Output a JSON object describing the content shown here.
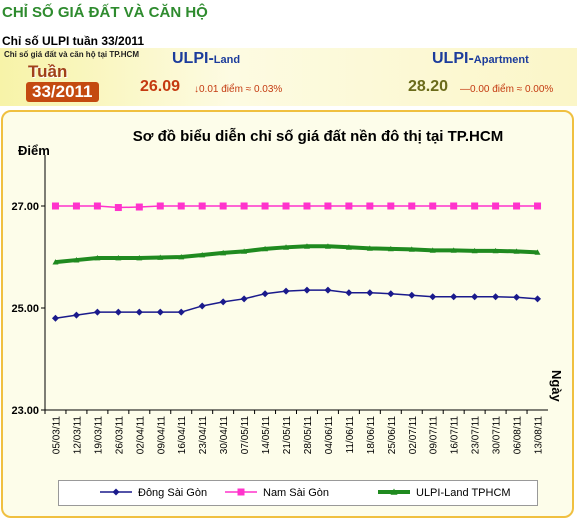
{
  "page_title": "CHỈ SỐ GIÁ ĐẤT VÀ CĂN HỘ",
  "subtitle": "Chỉ số ULPI tuần 33/2011",
  "banner": {
    "caption": "Chỉ số giá đất và căn hộ tại TP.HCM",
    "week_label": "Tuần",
    "week_number": "33/2011",
    "land": {
      "title": "ULPI-",
      "title_suffix": "Land",
      "value": "26.09",
      "change": "↓0.01 điểm ≈ 0.03%"
    },
    "apartment": {
      "title": "ULPI-",
      "title_suffix": "Apartment",
      "value": "28.20",
      "change": "—0.00 điểm ≈ 0.00%"
    },
    "colors": {
      "land_value": "#c43a10",
      "apt_value": "#6b6b1a",
      "land_change": "#c43a10",
      "apt_change": "#c43a10"
    }
  },
  "chart_data": {
    "type": "line",
    "title": "Sơ đồ biểu diễn chỉ số giá đất nền đô thị tại TP.HCM",
    "ylabel": "Điểm",
    "xlabel": "Ngày",
    "ylim": [
      23,
      28
    ],
    "yticks": [
      "23.00",
      "25.00",
      "27.00"
    ],
    "ytick_values": [
      23,
      25,
      27
    ],
    "grid": false,
    "legend_position": "bottom",
    "categories": [
      "05/03/11",
      "12/03/11",
      "19/03/11",
      "26/03/11",
      "02/04/11",
      "09/04/11",
      "16/04/11",
      "23/04/11",
      "30/04/11",
      "07/05/11",
      "14/05/11",
      "21/05/11",
      "28/05/11",
      "04/06/11",
      "11/06/11",
      "18/06/11",
      "25/06/11",
      "02/07/11",
      "09/07/11",
      "16/07/11",
      "23/07/11",
      "30/07/11",
      "06/08/11",
      "13/08/11"
    ],
    "series": [
      {
        "name": "Đông Sài Gòn",
        "color": "#1a1a8c",
        "marker": "diamond",
        "values": [
          24.8,
          24.86,
          24.92,
          24.92,
          24.92,
          24.92,
          24.92,
          25.04,
          25.12,
          25.18,
          25.28,
          25.33,
          25.35,
          25.35,
          25.3,
          25.3,
          25.28,
          25.25,
          25.22,
          25.22,
          25.22,
          25.22,
          25.21,
          25.18
        ]
      },
      {
        "name": "Nam Sài Gòn",
        "color": "#ff33cc",
        "marker": "square",
        "values": [
          27.0,
          27.0,
          27.0,
          26.97,
          26.98,
          27.0,
          27.0,
          27.0,
          27.0,
          27.0,
          27.0,
          27.0,
          27.0,
          27.0,
          27.0,
          27.0,
          27.0,
          27.0,
          27.0,
          27.0,
          27.0,
          27.0,
          27.0,
          27.0
        ]
      },
      {
        "name": "ULPI-Land TPHCM",
        "color": "#1f8a1f",
        "marker": "triangle",
        "values": [
          25.9,
          25.94,
          25.98,
          25.98,
          25.98,
          25.99,
          26.0,
          26.04,
          26.08,
          26.11,
          26.16,
          26.19,
          26.21,
          26.21,
          26.19,
          26.17,
          26.16,
          26.15,
          26.13,
          26.13,
          26.12,
          26.12,
          26.11,
          26.09
        ]
      }
    ]
  }
}
